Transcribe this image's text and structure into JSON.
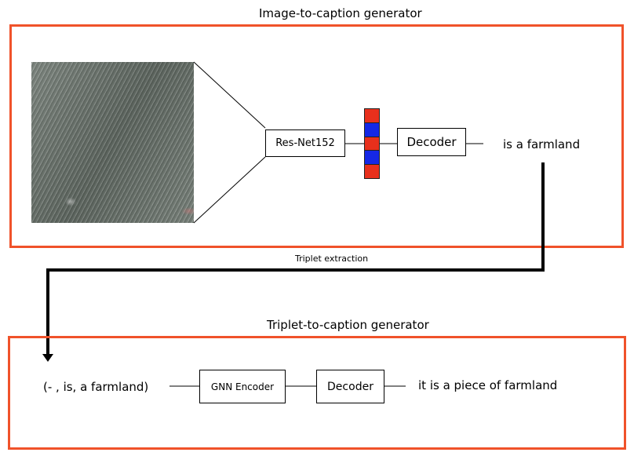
{
  "top_panel": {
    "title": "Image-to-caption generator",
    "encoder_label": "Res-Net152",
    "decoder_label": "Decoder",
    "output_text": "is a farmland",
    "feature_colors": [
      "#e8301c",
      "#1528e6",
      "#e8301c",
      "#1528e6",
      "#e8301c"
    ]
  },
  "connector": {
    "label": "Triplet extraction"
  },
  "bottom_panel": {
    "title": "Triplet-to-caption generator",
    "input_triplet": "(- , is, a farmland)",
    "encoder_label": "GNN Encoder",
    "decoder_label": "Decoder",
    "output_text": "it is a piece of farmland"
  },
  "colors": {
    "panel_border": "#f0522a"
  }
}
